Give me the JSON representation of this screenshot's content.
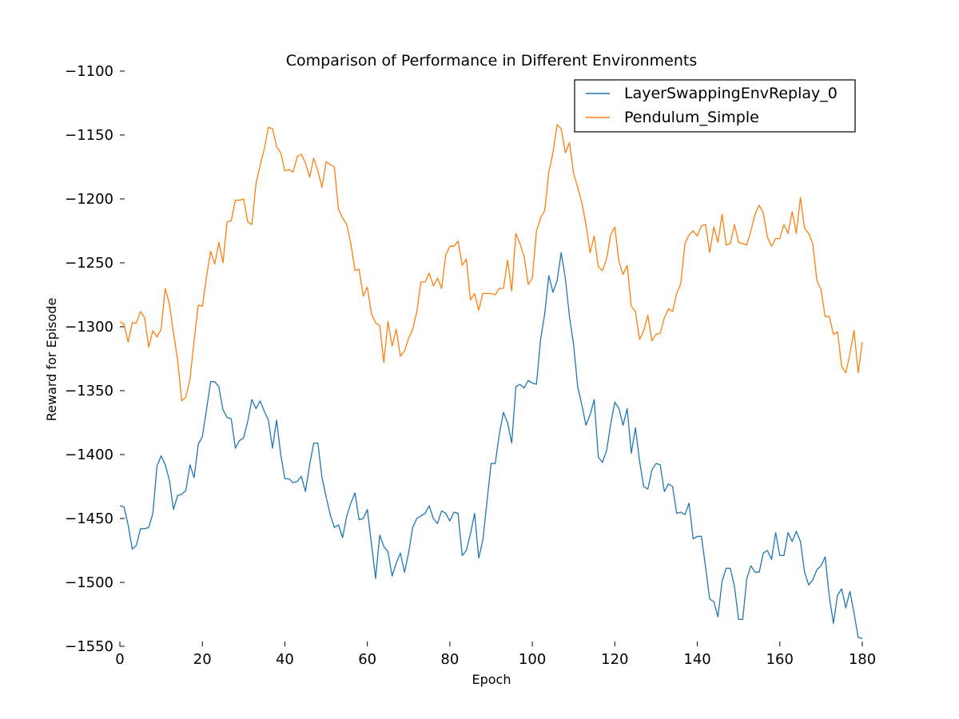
{
  "chart_data": {
    "type": "line",
    "title": "Comparison of Performance in Different Environments",
    "xlabel": "Epoch",
    "ylabel": "Reward for Episode",
    "xlim": [
      0,
      180
    ],
    "ylim": [
      -1550,
      -1100
    ],
    "xticks": [
      0,
      20,
      40,
      60,
      80,
      100,
      120,
      140,
      160,
      180
    ],
    "yticks": [
      -1100,
      -1150,
      -1200,
      -1250,
      -1300,
      -1350,
      -1400,
      -1450,
      -1500,
      -1550
    ],
    "grid": false,
    "legend_position": "top-right",
    "series": [
      {
        "name": "LayerSwappingEnvReplay_0",
        "color": "#1f77b4",
        "values": [
          -1440,
          -1441,
          -1455,
          -1474,
          -1471,
          -1458,
          -1458,
          -1457,
          -1446,
          -1409,
          -1401,
          -1408,
          -1420,
          -1443,
          -1432,
          -1431,
          -1428,
          -1408,
          -1418,
          -1392,
          -1386,
          -1365,
          -1343,
          -1343,
          -1347,
          -1365,
          -1371,
          -1372,
          -1395,
          -1389,
          -1387,
          -1374,
          -1357,
          -1364,
          -1358,
          -1366,
          -1373,
          -1395,
          -1373,
          -1400,
          -1419,
          -1419,
          -1422,
          -1421,
          -1417,
          -1429,
          -1408,
          -1391,
          -1391,
          -1418,
          -1433,
          -1447,
          -1457,
          -1455,
          -1465,
          -1448,
          -1438,
          -1430,
          -1451,
          -1450,
          -1443,
          -1470,
          -1497,
          -1463,
          -1472,
          -1476,
          -1495,
          -1485,
          -1477,
          -1492,
          -1477,
          -1457,
          -1450,
          -1448,
          -1446,
          -1440,
          -1450,
          -1454,
          -1444,
          -1446,
          -1452,
          -1445,
          -1446,
          -1479,
          -1475,
          -1462,
          -1446,
          -1481,
          -1467,
          -1437,
          -1407,
          -1407,
          -1384,
          -1367,
          -1375,
          -1391,
          -1347,
          -1345,
          -1348,
          -1342,
          -1344,
          -1345,
          -1310,
          -1290,
          -1260,
          -1273,
          -1264,
          -1242,
          -1262,
          -1292,
          -1314,
          -1347,
          -1361,
          -1377,
          -1369,
          -1357,
          -1402,
          -1406,
          -1397,
          -1376,
          -1359,
          -1364,
          -1377,
          -1364,
          -1399,
          -1379,
          -1405,
          -1425,
          -1427,
          -1412,
          -1407,
          -1408,
          -1429,
          -1423,
          -1425,
          -1446,
          -1445,
          -1447,
          -1438,
          -1466,
          -1464,
          -1464,
          -1488,
          -1513,
          -1515,
          -1527,
          -1499,
          -1489,
          -1489,
          -1503,
          -1529,
          -1529,
          -1497,
          -1487,
          -1492,
          -1492,
          -1477,
          -1475,
          -1482,
          -1461,
          -1479,
          -1479,
          -1461,
          -1468,
          -1460,
          -1468,
          -1492,
          -1502,
          -1498,
          -1490,
          -1487,
          -1480,
          -1511,
          -1532,
          -1510,
          -1505,
          -1520,
          -1507,
          -1524,
          -1543,
          -1544
        ]
      },
      {
        "name": "Pendulum_Simple",
        "color": "#ff7f0e",
        "values": [
          -1296,
          -1298,
          -1312,
          -1297,
          -1297,
          -1288,
          -1293,
          -1316,
          -1303,
          -1308,
          -1302,
          -1270,
          -1282,
          -1305,
          -1326,
          -1358,
          -1355,
          -1341,
          -1311,
          -1283,
          -1284,
          -1261,
          -1241,
          -1251,
          -1234,
          -1250,
          -1218,
          -1217,
          -1201,
          -1201,
          -1200,
          -1218,
          -1220,
          -1188,
          -1174,
          -1161,
          -1144,
          -1145,
          -1159,
          -1164,
          -1178,
          -1177,
          -1179,
          -1167,
          -1165,
          -1172,
          -1183,
          -1168,
          -1178,
          -1191,
          -1171,
          -1173,
          -1175,
          -1208,
          -1215,
          -1220,
          -1235,
          -1256,
          -1255,
          -1276,
          -1269,
          -1290,
          -1297,
          -1299,
          -1328,
          -1296,
          -1315,
          -1302,
          -1323,
          -1319,
          -1309,
          -1302,
          -1288,
          -1265,
          -1265,
          -1258,
          -1268,
          -1262,
          -1270,
          -1244,
          -1237,
          -1237,
          -1233,
          -1252,
          -1247,
          -1279,
          -1274,
          -1287,
          -1274,
          -1274,
          -1274,
          -1275,
          -1270,
          -1270,
          -1248,
          -1272,
          -1227,
          -1235,
          -1245,
          -1267,
          -1262,
          -1225,
          -1215,
          -1209,
          -1179,
          -1164,
          -1142,
          -1145,
          -1164,
          -1156,
          -1180,
          -1191,
          -1203,
          -1220,
          -1242,
          -1229,
          -1253,
          -1256,
          -1247,
          -1228,
          -1222,
          -1249,
          -1259,
          -1252,
          -1284,
          -1288,
          -1310,
          -1303,
          -1291,
          -1311,
          -1306,
          -1305,
          -1293,
          -1286,
          -1288,
          -1274,
          -1266,
          -1235,
          -1228,
          -1225,
          -1229,
          -1221,
          -1220,
          -1242,
          -1222,
          -1234,
          -1212,
          -1236,
          -1235,
          -1220,
          -1234,
          -1235,
          -1236,
          -1225,
          -1212,
          -1205,
          -1211,
          -1230,
          -1237,
          -1231,
          -1231,
          -1220,
          -1227,
          -1210,
          -1227,
          -1199,
          -1223,
          -1227,
          -1235,
          -1264,
          -1271,
          -1292,
          -1292,
          -1306,
          -1304,
          -1331,
          -1336,
          -1321,
          -1303,
          -1336,
          -1312
        ]
      }
    ]
  }
}
